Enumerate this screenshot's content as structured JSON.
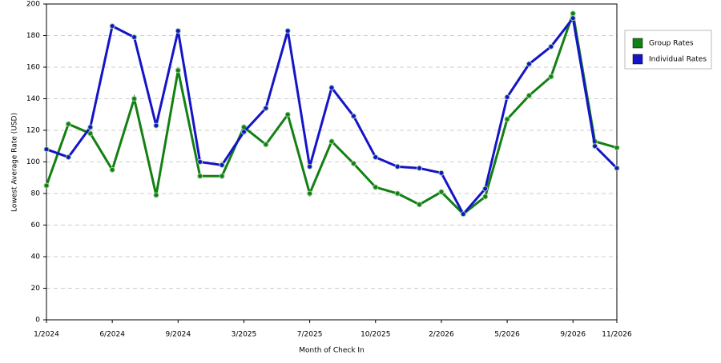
{
  "chart_data": {
    "type": "line",
    "x_label": "Month of Check In",
    "y_label": "Lowest Average Rate (USD)",
    "categories": [
      "1/2024",
      null,
      null,
      "6/2024",
      null,
      null,
      "9/2024",
      null,
      null,
      "3/2025",
      null,
      null,
      "7/2025",
      null,
      null,
      "10/2025",
      null,
      null,
      "2/2026",
      null,
      null,
      "5/2026",
      null,
      null,
      "9/2026",
      null,
      "11/2026"
    ],
    "series": [
      {
        "name": "Group Rates",
        "color": "#138013",
        "values": [
          85,
          124,
          118,
          95,
          140,
          79,
          158,
          91,
          91,
          122,
          111,
          130,
          80,
          113,
          99,
          84,
          80,
          73,
          81,
          67,
          78,
          127,
          142,
          154,
          194,
          113,
          109
        ]
      },
      {
        "name": "Individual Rates",
        "color": "#1414c8",
        "values": [
          108,
          103,
          122,
          186,
          179,
          123,
          183,
          100,
          98,
          119,
          134,
          183,
          97,
          147,
          129,
          103,
          97,
          96,
          93,
          67,
          83,
          141,
          162,
          173,
          191,
          110,
          96
        ]
      }
    ],
    "ylim": [
      0,
      200
    ],
    "yticks": [
      0,
      20,
      40,
      60,
      80,
      100,
      120,
      140,
      160,
      180,
      200
    ],
    "grid": true,
    "legend": "right"
  }
}
